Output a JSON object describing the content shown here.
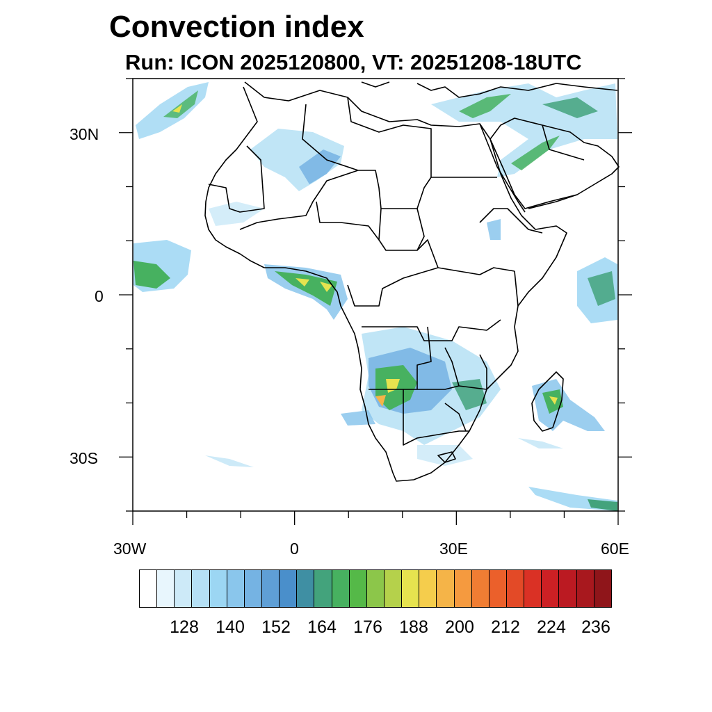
{
  "title": "Convection index",
  "subtitle": "Run: ICON 2025120800,  VT: 20251208-18UTC",
  "map": {
    "region": "Africa",
    "projection": "cylindrical equidistant",
    "lon_range": [
      -30,
      60
    ],
    "lat_range": [
      -40,
      40
    ],
    "lon_ticks": [
      {
        "value": -30,
        "label": "30W"
      },
      {
        "value": 0,
        "label": "0"
      },
      {
        "value": 30,
        "label": "30E"
      },
      {
        "value": 60,
        "label": "60E"
      }
    ],
    "lat_ticks": [
      {
        "value": 30,
        "label": "30N"
      },
      {
        "value": 0,
        "label": "0"
      },
      {
        "value": -30,
        "label": "30S"
      }
    ]
  },
  "colorbar": {
    "labels": [
      "128",
      "140",
      "152",
      "164",
      "176",
      "188",
      "200",
      "212",
      "224",
      "236"
    ],
    "colors": [
      "#ffffff",
      "#e8f6fd",
      "#cdeaf8",
      "#b5e0f5",
      "#9cd6f3",
      "#8ac6ec",
      "#75b3e3",
      "#5f9fd6",
      "#4a8fcb",
      "#3f8fa3",
      "#43a37c",
      "#47b160",
      "#55b948",
      "#8cc64a",
      "#b5d14b",
      "#e6e34f",
      "#f5cd4c",
      "#f5b448",
      "#f59a3f",
      "#f07d33",
      "#eb602b",
      "#e34a27",
      "#da3125",
      "#cc2024",
      "#bb1a22",
      "#a8181e",
      "#8f151a"
    ]
  }
}
